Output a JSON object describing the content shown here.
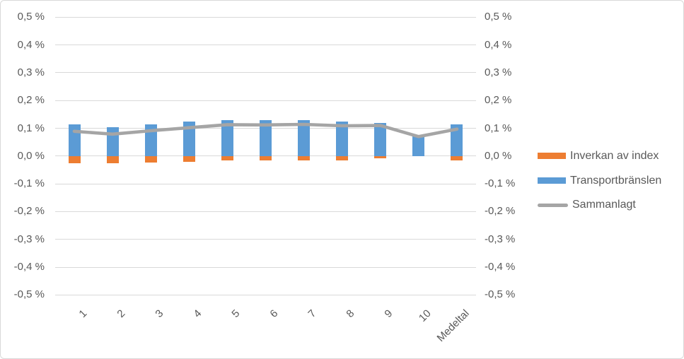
{
  "chart_data": {
    "type": "bar",
    "subtype": "stacked-column-with-line",
    "title": "",
    "xlabel": "",
    "ylabel": "",
    "grid": true,
    "legend_position": "right",
    "categories": [
      "1",
      "2",
      "3",
      "4",
      "5",
      "6",
      "7",
      "8",
      "9",
      "10",
      "Medeltal"
    ],
    "series": [
      {
        "name": "Inverkan av index",
        "type": "bar",
        "color": "#ED7D31",
        "values": [
          -0.026,
          -0.025,
          -0.024,
          -0.022,
          -0.017,
          -0.016,
          -0.015,
          -0.016,
          -0.009,
          0,
          -0.017
        ]
      },
      {
        "name": "Transportbränslen",
        "type": "bar",
        "color": "#5B9BD5",
        "values": [
          0.115,
          0.104,
          0.115,
          0.124,
          0.13,
          0.128,
          0.129,
          0.125,
          0.119,
          0.07,
          0.114
        ]
      },
      {
        "name": "Sammanlagt",
        "type": "line",
        "color": "#A5A5A5",
        "values": [
          0.089,
          0.079,
          0.091,
          0.102,
          0.113,
          0.112,
          0.114,
          0.109,
          0.11,
          0.07,
          0.097
        ]
      }
    ],
    "y_axis": {
      "min": -0.5,
      "max": 0.5,
      "step": 0.1,
      "unit": "%",
      "tick_labels": [
        "0,5 %",
        "0,4 %",
        "0,3 %",
        "0,2 %",
        "0,1 %",
        "0,0 %",
        "-0,1 %",
        "-0,2 %",
        "-0,3 %",
        "-0,4 %",
        "-0,5 %"
      ],
      "duplicate_right_axis": true
    }
  },
  "colors": {
    "grid": "#D9D9D9",
    "axis_text": "#595959",
    "legend_text": "#595959",
    "border": "#D9D9D9",
    "background": "#FFFFFF"
  }
}
